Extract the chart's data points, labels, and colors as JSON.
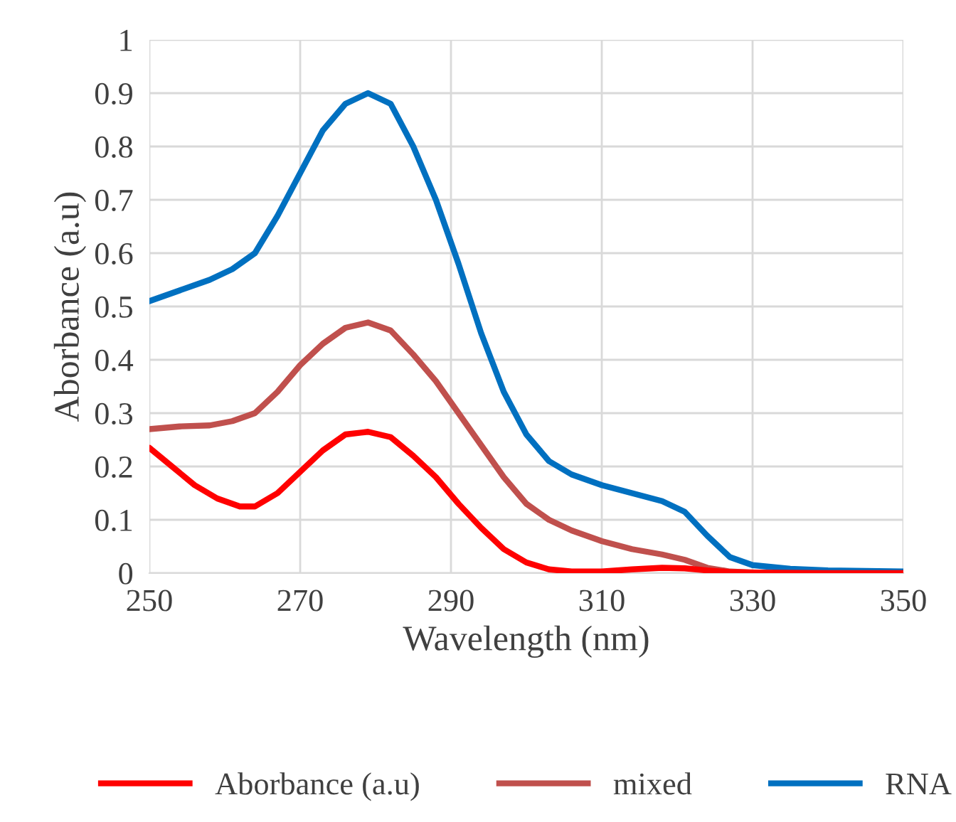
{
  "chart_data": {
    "type": "line",
    "xlabel": "Wavelength (nm)",
    "ylabel": "Aborbance (a.u)",
    "xlim": [
      250,
      350
    ],
    "xticks": [
      250,
      270,
      290,
      310,
      330,
      350
    ],
    "ylim": [
      0,
      1
    ],
    "yticks": [
      0,
      0.1,
      0.2,
      0.3,
      0.4,
      0.5,
      0.6,
      0.7,
      0.8,
      0.9,
      1
    ],
    "grid": true,
    "legend": "bottom",
    "marker": "none",
    "line_style": "solid",
    "series": [
      {
        "name": "Aborbance (a.u)",
        "color": "#ff0000",
        "x": [
          250,
          253,
          256,
          259,
          262,
          264,
          267,
          270,
          273,
          276,
          279,
          282,
          285,
          288,
          291,
          294,
          297,
          300,
          303,
          306,
          310,
          314,
          318,
          321,
          324,
          327,
          330,
          340,
          350
        ],
        "values": [
          0.235,
          0.2,
          0.165,
          0.14,
          0.125,
          0.125,
          0.15,
          0.19,
          0.23,
          0.26,
          0.265,
          0.255,
          0.22,
          0.18,
          0.13,
          0.085,
          0.045,
          0.02,
          0.007,
          0.003,
          0.003,
          0.007,
          0.01,
          0.009,
          0.005,
          0.002,
          0.001,
          0,
          0
        ]
      },
      {
        "name": "mixed",
        "color": "#c0504d",
        "x": [
          250,
          254,
          258,
          261,
          264,
          267,
          270,
          273,
          276,
          279,
          282,
          285,
          288,
          291,
          294,
          297,
          300,
          303,
          306,
          310,
          314,
          318,
          321,
          324,
          327,
          330
        ],
        "values": [
          0.27,
          0.275,
          0.277,
          0.285,
          0.3,
          0.34,
          0.39,
          0.43,
          0.46,
          0.47,
          0.455,
          0.41,
          0.36,
          0.3,
          0.24,
          0.18,
          0.13,
          0.1,
          0.08,
          0.06,
          0.045,
          0.035,
          0.025,
          0.01,
          0.003,
          0.001
        ]
      },
      {
        "name": "RNA",
        "color": "#0070c0",
        "x": [
          250,
          254,
          258,
          261,
          264,
          267,
          270,
          273,
          276,
          279,
          282,
          285,
          288,
          291,
          294,
          297,
          300,
          303,
          306,
          310,
          314,
          318,
          321,
          324,
          327,
          330,
          335,
          340,
          345,
          350
        ],
        "values": [
          0.51,
          0.53,
          0.55,
          0.57,
          0.6,
          0.67,
          0.75,
          0.83,
          0.88,
          0.9,
          0.88,
          0.8,
          0.7,
          0.58,
          0.45,
          0.34,
          0.26,
          0.21,
          0.185,
          0.165,
          0.15,
          0.135,
          0.115,
          0.07,
          0.03,
          0.015,
          0.008,
          0.005,
          0.004,
          0.003
        ]
      }
    ]
  }
}
